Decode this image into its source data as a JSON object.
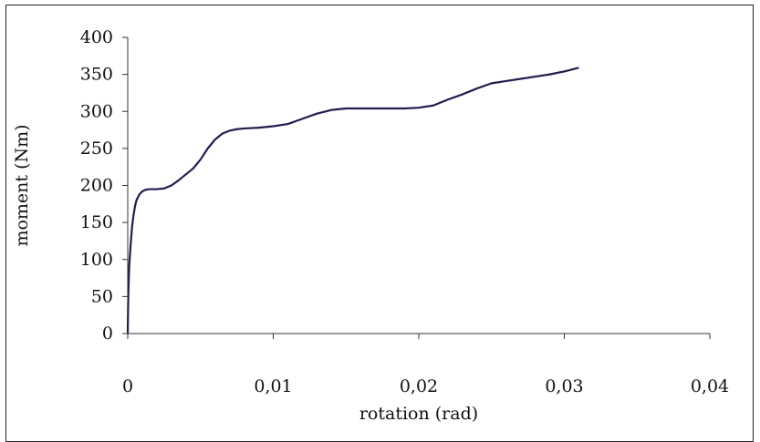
{
  "chart_data": {
    "type": "line",
    "title": "",
    "xlabel": "rotation (rad)",
    "ylabel": "moment (Nm)",
    "xlim": [
      0,
      0.04
    ],
    "ylim": [
      0,
      400
    ],
    "x_ticks": [
      0,
      0.01,
      0.02,
      0.03,
      0.04
    ],
    "x_tick_labels": [
      "0",
      "0,01",
      "0,02",
      "0,03",
      "0,04"
    ],
    "y_ticks": [
      0,
      50,
      100,
      150,
      200,
      250,
      300,
      350,
      400
    ],
    "y_tick_labels": [
      "0",
      "50",
      "100",
      "150",
      "200",
      "250",
      "300",
      "350",
      "400"
    ],
    "grid": false,
    "legend": "none",
    "series_color": "#1f1f4f",
    "series": [
      {
        "x": [
          0,
          2e-05,
          5e-05,
          0.0001,
          0.0002,
          0.0003,
          0.0004,
          0.0005,
          0.0006,
          0.0008,
          0.001,
          0.0012,
          0.0015,
          0.002,
          0.0025,
          0.003,
          0.0035,
          0.004,
          0.0045,
          0.005,
          0.0055,
          0.006,
          0.0065,
          0.007,
          0.0075,
          0.008,
          0.009,
          0.01,
          0.011,
          0.012,
          0.013,
          0.014,
          0.015,
          0.016,
          0.017,
          0.018,
          0.019,
          0.02,
          0.021,
          0.022,
          0.023,
          0.024,
          0.025,
          0.026,
          0.027,
          0.028,
          0.029,
          0.03,
          0.031
        ],
        "y": [
          0,
          30,
          60,
          90,
          120,
          145,
          160,
          172,
          180,
          188,
          192,
          194,
          195,
          195,
          196,
          200,
          207,
          215,
          223,
          235,
          250,
          262,
          270,
          274,
          276,
          277,
          278,
          280,
          283,
          290,
          297,
          302,
          304,
          304,
          304,
          304,
          304,
          305,
          308,
          316,
          323,
          331,
          338,
          341,
          344,
          347,
          350,
          354,
          359
        ]
      }
    ]
  }
}
